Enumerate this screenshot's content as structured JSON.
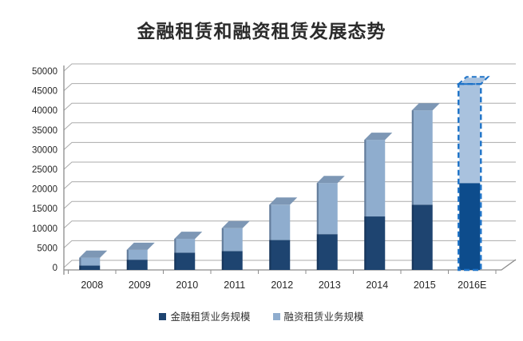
{
  "title": "金融租赁和融资租赁发展态势",
  "legend": [
    {
      "label": "金融租赁业务规模",
      "color": "#1E4470"
    },
    {
      "label": "融资租赁业务规模",
      "color": "#8FADCE"
    }
  ],
  "colors": {
    "dark_series": "#1E4470",
    "light_series": "#8FADCE",
    "cap_light": "#7D97B5",
    "forecast_dark": "#0D4C8C",
    "forecast_light": "#A9C2DE",
    "forecast_border": "#1E73C8",
    "gridline": "#ABABAB",
    "axis": "#8C8C8C",
    "text": "#262626"
  },
  "chart_data": {
    "type": "bar",
    "subtype": "3d-stacked-column",
    "stacked": true,
    "title": "金融租赁和融资租赁发展态势",
    "categories": [
      "2008",
      "2009",
      "2010",
      "2011",
      "2012",
      "2013",
      "2014",
      "2015",
      "2016E"
    ],
    "series": [
      {
        "name": "金融租赁业务规模",
        "values": [
          500,
          2000,
          3800,
          4200,
          7000,
          8500,
          13000,
          16000,
          21500
        ]
      },
      {
        "name": "融资租赁业务规模",
        "values": [
          2000,
          2500,
          3500,
          5800,
          9000,
          13000,
          19500,
          24000,
          25000
        ]
      }
    ],
    "totals": [
      2500,
      4500,
      7300,
      10000,
      16000,
      21500,
      32500,
      40000,
      46500
    ],
    "xlabel": "",
    "ylabel": "",
    "ylim": [
      0,
      50000
    ],
    "ytick_interval": 5000,
    "yticks": [
      "0",
      "5000",
      "10000",
      "15000",
      "20000",
      "25000",
      "30000",
      "35000",
      "40000",
      "45000",
      "50000"
    ],
    "forecast_category": "2016E",
    "grid": true,
    "legend_position": "bottom"
  }
}
